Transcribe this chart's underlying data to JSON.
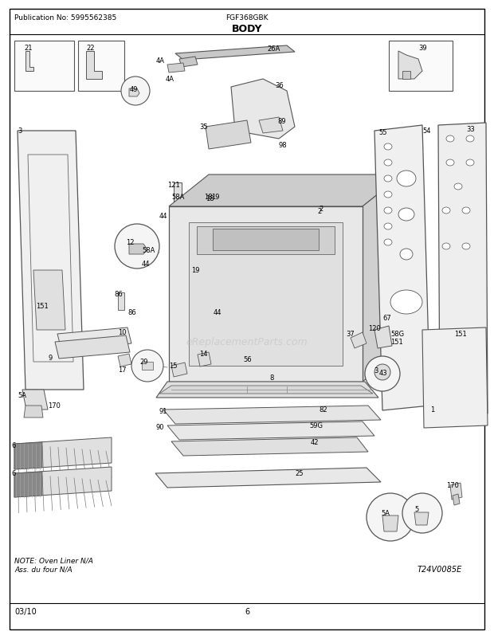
{
  "title": "BODY",
  "pub_no": "Publication No: 5995562385",
  "model": "FGF368GBK",
  "date": "03/10",
  "page": "6",
  "diagram_code": "T24V0085E",
  "note_line1": "NOTE: Oven Liner N/A",
  "note_line2": "Ass. du four N/A",
  "watermark": "eReplacementParts.com",
  "bg_color": "#ffffff",
  "border_color": "#000000",
  "text_color": "#000000",
  "fig_width": 6.2,
  "fig_height": 8.03,
  "dpi": 100
}
